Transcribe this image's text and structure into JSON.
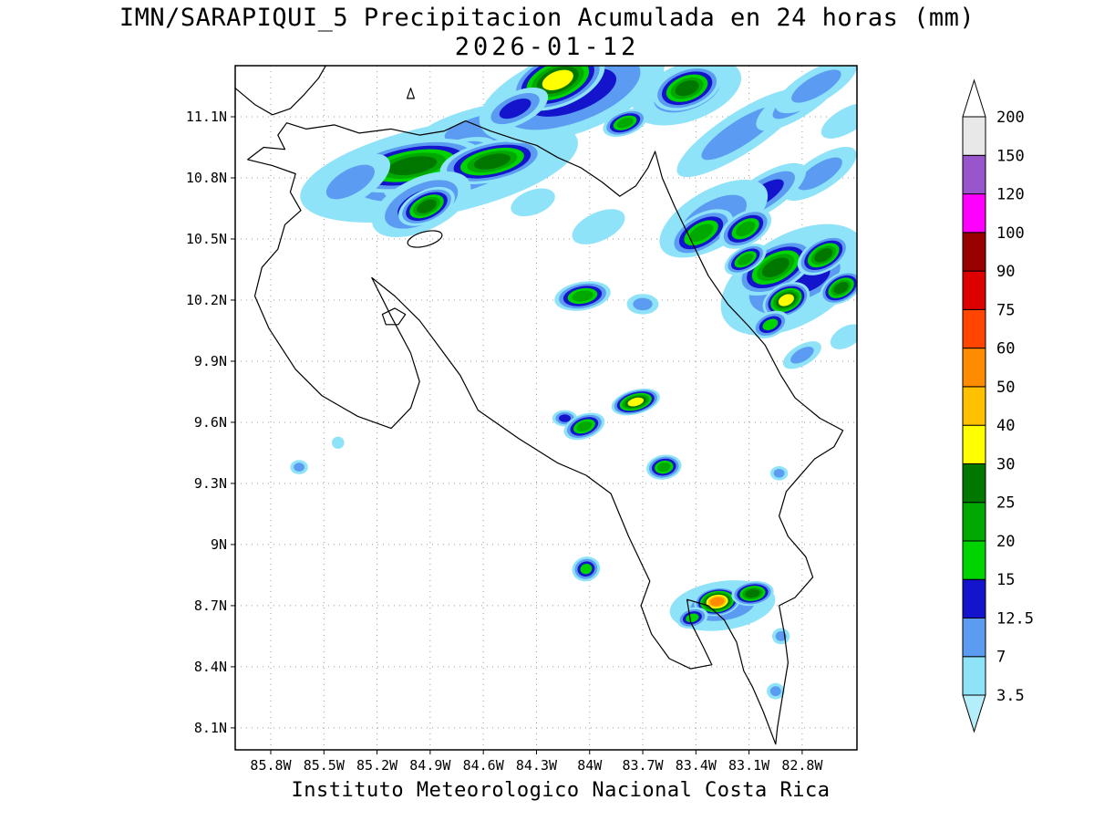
{
  "figure": {
    "title_line1": "IMN/SARAPIQUI_5 Precipitacion Acumulada en 24 horas (mm)",
    "title_line2": "2026-01-12",
    "footer": "Instituto Meteorologico Nacional Costa Rica"
  },
  "chart_data": {
    "type": "heatmap",
    "title": "IMN/SARAPIQUI_5 Precipitacion Acumulada en 24 horas (mm)",
    "subtitle": "2026-01-12",
    "footer": "Instituto Meteorologico Nacional Costa Rica",
    "units": "mm",
    "axes": {
      "lat_labels": [
        "11.1N",
        "10.8N",
        "10.5N",
        "10.2N",
        "9.9N",
        "9.6N",
        "9.3N",
        "9N",
        "8.7N",
        "8.4N",
        "8.1N"
      ],
      "lat_values": [
        11.1,
        10.8,
        10.5,
        10.2,
        9.9,
        9.6,
        9.3,
        9,
        8.7,
        8.4,
        8.1
      ],
      "lon_labels": [
        "85.8W",
        "85.5W",
        "85.2W",
        "84.9W",
        "84.6W",
        "84.3W",
        "84W",
        "83.7W",
        "83.4W",
        "83.1W",
        "82.8W"
      ],
      "lon_values": [
        -85.8,
        -85.5,
        -85.2,
        -84.9,
        -84.6,
        -84.3,
        -84,
        -83.7,
        -83.4,
        -83.1,
        -82.8
      ],
      "lon_range": [
        -86.0,
        -82.49
      ],
      "lat_range": [
        7.99,
        11.35
      ],
      "grid": "dotted"
    },
    "colorbar": {
      "position": "right",
      "levels": [
        3.5,
        7,
        12.5,
        15,
        20,
        25,
        30,
        40,
        50,
        60,
        75,
        90,
        100,
        120,
        150,
        200
      ],
      "segment_colors": [
        "#8fe3f8",
        "#5b9bf2",
        "#1414cc",
        "#00d400",
        "#00a800",
        "#007800",
        "#ffff00",
        "#ffc000",
        "#ff8c00",
        "#ff4500",
        "#dd0000",
        "#990000",
        "#ff00ff",
        "#9955cc",
        "#e8e8e8"
      ],
      "under_color": "#b5eefb",
      "over_color": "#ffffff"
    },
    "precip_cells_format": "[lon, lat, rx_deg, ry_deg, rotation_deg, max_level_mm]",
    "precip_cells": [
      [
        -84.85,
        10.84,
        0.8,
        0.22,
        -12,
        7
      ],
      [
        -84.55,
        11.05,
        0.45,
        0.11,
        -12,
        7
      ],
      [
        -84.72,
        10.92,
        0.2,
        0.07,
        -15,
        12.5
      ],
      [
        -85.02,
        10.77,
        0.15,
        0.06,
        -20,
        12.5
      ],
      [
        -85.0,
        10.86,
        0.4,
        0.12,
        -10,
        25
      ],
      [
        -84.55,
        10.88,
        0.3,
        0.1,
        -12,
        25
      ],
      [
        -84.95,
        10.67,
        0.3,
        0.13,
        -25,
        12.5
      ],
      [
        -84.92,
        10.66,
        0.17,
        0.08,
        -25,
        25
      ],
      [
        -85.35,
        10.78,
        0.25,
        0.1,
        -30,
        7
      ],
      [
        -84.1,
        11.22,
        0.55,
        0.2,
        -20,
        12.5
      ],
      [
        -84.18,
        11.28,
        0.28,
        0.13,
        -22,
        30
      ],
      [
        -84.42,
        11.14,
        0.2,
        0.08,
        -25,
        12.5
      ],
      [
        -83.45,
        11.22,
        0.32,
        0.14,
        -20,
        7
      ],
      [
        -83.45,
        11.24,
        0.2,
        0.1,
        -20,
        25
      ],
      [
        -83.8,
        11.07,
        0.13,
        0.06,
        -20,
        20
      ],
      [
        -83.15,
        11.02,
        0.42,
        0.1,
        -33,
        7
      ],
      [
        -82.82,
        11.18,
        0.28,
        0.08,
        -33,
        7
      ],
      [
        -82.7,
        10.82,
        0.24,
        0.08,
        -33,
        7
      ],
      [
        -83.02,
        10.72,
        0.28,
        0.09,
        -33,
        12.5
      ],
      [
        -83.3,
        10.6,
        0.34,
        0.14,
        -30,
        7
      ],
      [
        -83.37,
        10.53,
        0.2,
        0.09,
        -30,
        20
      ],
      [
        -83.12,
        10.55,
        0.16,
        0.08,
        -30,
        20
      ],
      [
        -82.72,
        11.25,
        0.26,
        0.08,
        -30,
        7
      ],
      [
        -82.55,
        11.08,
        0.16,
        0.06,
        -30,
        3.5
      ],
      [
        -82.85,
        10.3,
        0.45,
        0.22,
        -30,
        7
      ],
      [
        -82.75,
        10.3,
        0.25,
        0.1,
        -30,
        12.5
      ],
      [
        -82.95,
        10.36,
        0.24,
        0.11,
        -28,
        25
      ],
      [
        -82.68,
        10.42,
        0.16,
        0.08,
        -30,
        25
      ],
      [
        -82.89,
        10.2,
        0.14,
        0.08,
        -25,
        30
      ],
      [
        -82.58,
        10.26,
        0.13,
        0.07,
        -30,
        25
      ],
      [
        -83.12,
        10.4,
        0.13,
        0.06,
        -30,
        20
      ],
      [
        -82.98,
        10.08,
        0.11,
        0.06,
        -25,
        15
      ],
      [
        -83.95,
        10.56,
        0.16,
        0.07,
        -25,
        3.5
      ],
      [
        -84.32,
        10.68,
        0.13,
        0.06,
        -20,
        3.5
      ],
      [
        -82.8,
        9.93,
        0.12,
        0.05,
        -30,
        7
      ],
      [
        -82.55,
        10.02,
        0.1,
        0.05,
        -30,
        3.5
      ],
      [
        -84.04,
        10.22,
        0.16,
        0.07,
        -10,
        20
      ],
      [
        -83.7,
        10.18,
        0.09,
        0.05,
        0,
        7
      ],
      [
        -83.74,
        9.7,
        0.14,
        0.06,
        -15,
        30
      ],
      [
        -84.14,
        9.62,
        0.07,
        0.04,
        0,
        12.5
      ],
      [
        -84.03,
        9.58,
        0.12,
        0.06,
        -20,
        20
      ],
      [
        -83.58,
        9.38,
        0.1,
        0.06,
        -10,
        20
      ],
      [
        -85.64,
        9.38,
        0.05,
        0.035,
        0,
        7
      ],
      [
        -85.42,
        9.5,
        0.035,
        0.03,
        0,
        3.5
      ],
      [
        -82.93,
        9.35,
        0.05,
        0.035,
        0,
        7
      ],
      [
        -84.02,
        8.88,
        0.08,
        0.06,
        -15,
        15
      ],
      [
        -83.25,
        8.7,
        0.3,
        0.12,
        -8,
        7
      ],
      [
        -83.28,
        8.72,
        0.13,
        0.07,
        -8,
        50
      ],
      [
        -83.08,
        8.76,
        0.12,
        0.06,
        -8,
        25
      ],
      [
        -83.42,
        8.64,
        0.09,
        0.05,
        -15,
        15
      ],
      [
        -82.92,
        8.55,
        0.05,
        0.04,
        0,
        7
      ],
      [
        -82.95,
        8.28,
        0.05,
        0.04,
        0,
        7
      ]
    ],
    "geo": {
      "coastline": [
        [
          -85.71,
          11.07
        ],
        [
          -85.6,
          11.04
        ],
        [
          -85.44,
          11.06
        ],
        [
          -85.3,
          11.02
        ],
        [
          -85.12,
          11.04
        ],
        [
          -84.96,
          11.01
        ],
        [
          -84.82,
          11.03
        ],
        [
          -84.7,
          11.08
        ],
        [
          -84.56,
          11.03
        ],
        [
          -84.42,
          10.99
        ],
        [
          -84.3,
          10.96
        ],
        [
          -84.18,
          10.9
        ],
        [
          -84.05,
          10.85
        ],
        [
          -83.93,
          10.78
        ],
        [
          -83.83,
          10.71
        ],
        [
          -83.74,
          10.76
        ],
        [
          -83.67,
          10.85
        ],
        [
          -83.63,
          10.93
        ],
        [
          -83.59,
          10.8
        ],
        [
          -83.52,
          10.66
        ],
        [
          -83.42,
          10.48
        ],
        [
          -83.33,
          10.32
        ],
        [
          -83.22,
          10.18
        ],
        [
          -83.1,
          10.07
        ],
        [
          -83.01,
          9.98
        ],
        [
          -82.92,
          9.83
        ],
        [
          -82.84,
          9.72
        ],
        [
          -82.7,
          9.62
        ],
        [
          -82.57,
          9.56
        ],
        [
          -82.62,
          9.48
        ],
        [
          -82.73,
          9.42
        ],
        [
          -82.82,
          9.33
        ],
        [
          -82.89,
          9.26
        ],
        [
          -82.93,
          9.14
        ],
        [
          -82.88,
          9.04
        ],
        [
          -82.78,
          8.94
        ],
        [
          -82.74,
          8.84
        ],
        [
          -82.84,
          8.74
        ],
        [
          -82.93,
          8.7
        ],
        [
          -82.9,
          8.56
        ],
        [
          -82.88,
          8.42
        ],
        [
          -82.91,
          8.26
        ],
        [
          -82.94,
          8.1
        ],
        [
          -82.95,
          8.02
        ],
        [
          -83.02,
          8.18
        ],
        [
          -83.08,
          8.3
        ],
        [
          -83.13,
          8.38
        ],
        [
          -83.17,
          8.52
        ],
        [
          -83.24,
          8.63
        ],
        [
          -83.33,
          8.7
        ],
        [
          -83.45,
          8.73
        ],
        [
          -83.43,
          8.62
        ],
        [
          -83.36,
          8.5
        ],
        [
          -83.31,
          8.41
        ],
        [
          -83.43,
          8.39
        ],
        [
          -83.55,
          8.44
        ],
        [
          -83.65,
          8.56
        ],
        [
          -83.71,
          8.7
        ],
        [
          -83.66,
          8.82
        ],
        [
          -83.78,
          9.04
        ],
        [
          -83.88,
          9.25
        ],
        [
          -84.02,
          9.34
        ],
        [
          -84.18,
          9.4
        ],
        [
          -84.4,
          9.52
        ],
        [
          -84.63,
          9.66
        ],
        [
          -84.73,
          9.83
        ],
        [
          -84.84,
          9.96
        ],
        [
          -84.96,
          10.1
        ],
        [
          -85.1,
          10.22
        ],
        [
          -85.23,
          10.31
        ],
        [
          -85.12,
          10.12
        ],
        [
          -85.01,
          9.94
        ],
        [
          -84.96,
          9.8
        ],
        [
          -85.01,
          9.67
        ],
        [
          -85.12,
          9.57
        ],
        [
          -85.31,
          9.63
        ],
        [
          -85.51,
          9.73
        ],
        [
          -85.66,
          9.86
        ],
        [
          -85.81,
          10.06
        ],
        [
          -85.89,
          10.22
        ],
        [
          -85.85,
          10.36
        ],
        [
          -85.76,
          10.45
        ],
        [
          -85.72,
          10.57
        ],
        [
          -85.63,
          10.64
        ],
        [
          -85.69,
          10.73
        ],
        [
          -85.66,
          10.82
        ],
        [
          -85.79,
          10.86
        ],
        [
          -85.93,
          10.89
        ],
        [
          -85.84,
          10.95
        ],
        [
          -85.72,
          10.94
        ],
        [
          -85.76,
          11.01
        ],
        [
          -85.71,
          11.07
        ]
      ],
      "lake_nicaragua_shore": [
        [
          -86.0,
          11.24
        ],
        [
          -85.89,
          11.16
        ],
        [
          -85.79,
          11.11
        ],
        [
          -85.69,
          11.14
        ],
        [
          -85.61,
          11.21
        ],
        [
          -85.53,
          11.29
        ],
        [
          -85.49,
          11.35
        ]
      ],
      "lake_island": [
        [
          -85.03,
          11.19
        ],
        [
          -84.99,
          11.19
        ],
        [
          -85.01,
          11.24
        ]
      ],
      "chira_island": [
        [
          -85.17,
          10.13
        ],
        [
          -85.1,
          10.16
        ],
        [
          -85.04,
          10.13
        ],
        [
          -85.08,
          10.08
        ],
        [
          -85.15,
          10.08
        ]
      ],
      "lake_arenal": [
        -84.93,
        10.5,
        0.1,
        0.035,
        -15
      ]
    }
  }
}
